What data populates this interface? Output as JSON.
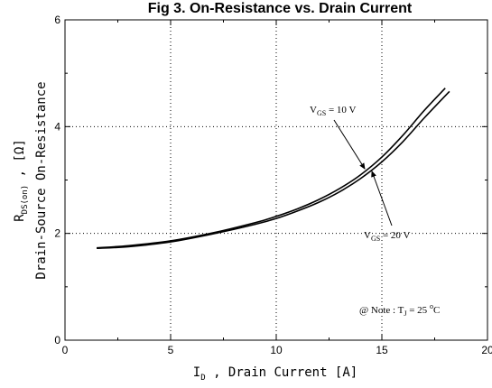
{
  "chart_data": {
    "type": "line",
    "title": "Fig 3.  On-Resistance vs. Drain Current",
    "xlabel": {
      "main": "I",
      "sub": "D",
      "rest": " , Drain Current   [A]"
    },
    "ylabel": {
      "line1_main": "R",
      "line1_sub": "DS(on)",
      "line1_rest": " ,  [Ω]",
      "line2": "Drain-Source On-Resistance"
    },
    "xlim": [
      0,
      20
    ],
    "ylim": [
      0,
      6
    ],
    "xticks": [
      0,
      5,
      10,
      15,
      20
    ],
    "yticks": [
      0,
      2,
      4,
      6
    ],
    "grid": true,
    "series": [
      {
        "name": "VGS = 10 V",
        "x": [
          1.5,
          3,
          5,
          7,
          9,
          10,
          11,
          12,
          13,
          14,
          15,
          16,
          17,
          18
        ],
        "y": [
          1.73,
          1.77,
          1.86,
          2.01,
          2.2,
          2.32,
          2.46,
          2.63,
          2.84,
          3.1,
          3.43,
          3.84,
          4.3,
          4.72
        ]
      },
      {
        "name": "VGS = 20 V",
        "x": [
          1.5,
          3,
          5,
          7,
          9,
          10,
          11,
          12,
          13,
          14,
          15,
          16,
          17,
          18.2
        ],
        "y": [
          1.72,
          1.75,
          1.84,
          1.99,
          2.17,
          2.28,
          2.42,
          2.58,
          2.78,
          3.03,
          3.34,
          3.72,
          4.16,
          4.66
        ]
      }
    ],
    "annotations": [
      {
        "main": "V",
        "sub": "GS",
        "rest": " = 10 V"
      },
      {
        "main": "V",
        "sub": "GS",
        "rest": " = 20 V"
      }
    ],
    "note": {
      "prefix": "@ Note : T",
      "sub": "J",
      "mid": " = 25 ",
      "sup": "o",
      "end": "C"
    }
  }
}
